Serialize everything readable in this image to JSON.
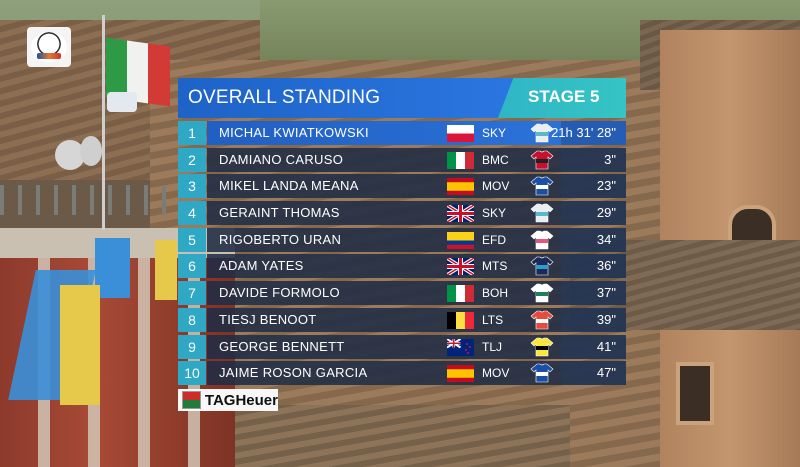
{
  "header": {
    "title": "OVERALL STANDING",
    "stage": "STAGE 5"
  },
  "colors": {
    "title_bar": "#1e63c7",
    "stage_bar": "#2fb6c6",
    "row_bg": "#202c46",
    "leader_row": "#215fc2"
  },
  "standings": [
    {
      "pos": "1",
      "name": "MICHAL KWIATKOWSKI",
      "flag": "poland",
      "team": "SKY",
      "jersey": "sky-jersey",
      "time": "21h 31' 28\""
    },
    {
      "pos": "2",
      "name": "DAMIANO CARUSO",
      "flag": "italy",
      "team": "BMC",
      "jersey": "bmc-jersey",
      "time": "3\""
    },
    {
      "pos": "3",
      "name": "MIKEL LANDA MEANA",
      "flag": "spain",
      "team": "MOV",
      "jersey": "mov-jersey",
      "time": "23\""
    },
    {
      "pos": "4",
      "name": "GERAINT THOMAS",
      "flag": "uk",
      "team": "SKY",
      "jersey": "sky-jersey",
      "time": "29\""
    },
    {
      "pos": "5",
      "name": "RIGOBERTO URAN",
      "flag": "colombia",
      "team": "EFD",
      "jersey": "efd-jersey",
      "time": "34\""
    },
    {
      "pos": "6",
      "name": "ADAM YATES",
      "flag": "uk",
      "team": "MTS",
      "jersey": "mts-jersey",
      "time": "36\""
    },
    {
      "pos": "7",
      "name": "DAVIDE FORMOLO",
      "flag": "italy",
      "team": "BOH",
      "jersey": "boh-jersey",
      "time": "37\""
    },
    {
      "pos": "8",
      "name": "TIESJ BENOOT",
      "flag": "belgium",
      "team": "LTS",
      "jersey": "lts-jersey",
      "time": "39\""
    },
    {
      "pos": "9",
      "name": "GEORGE BENNETT",
      "flag": "new-zealand",
      "team": "TLJ",
      "jersey": "tlj-jersey",
      "time": "41\""
    },
    {
      "pos": "10",
      "name": "JAIME ROSON GARCIA",
      "flag": "spain",
      "team": "MOV",
      "jersey": "mov-jersey",
      "time": "47\""
    }
  ],
  "sponsor": {
    "brand": "TAGHeuer"
  }
}
